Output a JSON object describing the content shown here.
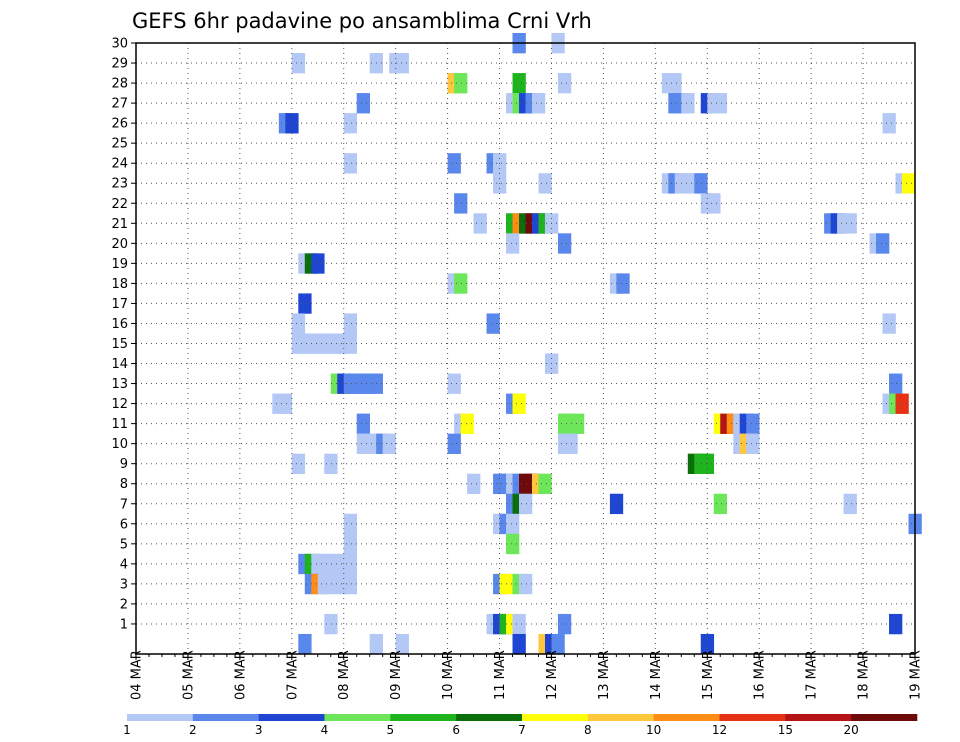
{
  "chart_data": {
    "type": "heatmap",
    "title": "GEFS 6hr padavine po ansamblima Crni Vrh",
    "x_tick_labels": [
      "04 MAR",
      "05 MAR",
      "06 MAR",
      "07 MAR",
      "08 MAR",
      "09 MAR",
      "10 MAR",
      "11 MAR",
      "12 MAR",
      "13 MAR",
      "14 MAR",
      "15 MAR",
      "16 MAR",
      "17 MAR",
      "18 MAR",
      "19 MAR"
    ],
    "y_tick_labels": [
      "1",
      "2",
      "3",
      "4",
      "5",
      "6",
      "7",
      "8",
      "9",
      "10",
      "11",
      "12",
      "13",
      "14",
      "15",
      "16",
      "17",
      "18",
      "19",
      "20",
      "21",
      "22",
      "23",
      "24",
      "25",
      "26",
      "27",
      "28",
      "29",
      "30"
    ],
    "y_range": [
      0,
      30
    ],
    "time_steps_per_day": 4,
    "x_start_label": "04 MAR",
    "grid": true,
    "colorbar": {
      "colors": [
        "#b4c8f5",
        "#5a87eb",
        "#1e46d2",
        "#6ee65a",
        "#1eb41e",
        "#0a6e0a",
        "#ffff0a",
        "#ffc83c",
        "#ff8c14",
        "#e63214",
        "#b41414",
        "#6e0a0a"
      ],
      "labels": [
        "1",
        "2",
        "3",
        "4",
        "5",
        "6",
        "7",
        "8",
        "10",
        "12",
        "15",
        "20"
      ]
    },
    "cells": [
      [
        29.5,
        30,
        "#5a87eb"
      ],
      [
        32.5,
        30,
        "#b4c8f5"
      ],
      [
        12.5,
        29,
        "#b4c8f5"
      ],
      [
        18.5,
        29,
        "#b4c8f5"
      ],
      [
        20,
        29,
        "#b4c8f5"
      ],
      [
        20.5,
        29,
        "#b4c8f5"
      ],
      [
        24.5,
        28,
        "#ffc83c"
      ],
      [
        25,
        28,
        "#6ee65a"
      ],
      [
        29.5,
        28,
        "#1eb41e"
      ],
      [
        33,
        28,
        "#b4c8f5"
      ],
      [
        41,
        28,
        "#b4c8f5"
      ],
      [
        41.5,
        28,
        "#b4c8f5"
      ],
      [
        17.5,
        27,
        "#5a87eb"
      ],
      [
        29,
        27,
        "#b4c8f5"
      ],
      [
        29.5,
        27,
        "#6ee65a"
      ],
      [
        30,
        27,
        "#1e46d2"
      ],
      [
        30.5,
        27,
        "#5a87eb"
      ],
      [
        31,
        27,
        "#b4c8f5"
      ],
      [
        41.5,
        27,
        "#5a87eb"
      ],
      [
        42,
        27,
        "#5a87eb"
      ],
      [
        42.5,
        27,
        "#b4c8f5"
      ],
      [
        44,
        27,
        "#1e46d2"
      ],
      [
        44.5,
        27,
        "#b4c8f5"
      ],
      [
        45,
        27,
        "#b4c8f5"
      ],
      [
        11.5,
        26,
        "#5a87eb"
      ],
      [
        12,
        26,
        "#1e46d2"
      ],
      [
        16.5,
        26,
        "#b4c8f5"
      ],
      [
        58,
        26,
        "#b4c8f5"
      ],
      [
        16.5,
        24,
        "#b4c8f5"
      ],
      [
        24.5,
        24,
        "#5a87eb"
      ],
      [
        27.5,
        24,
        "#5a87eb"
      ],
      [
        28,
        24,
        "#b4c8f5"
      ],
      [
        28,
        23,
        "#b4c8f5"
      ],
      [
        31.5,
        23,
        "#b4c8f5"
      ],
      [
        41,
        23,
        "#b4c8f5"
      ],
      [
        41.5,
        23,
        "#5a87eb"
      ],
      [
        42,
        23,
        "#b4c8f5"
      ],
      [
        42.5,
        23,
        "#b4c8f5"
      ],
      [
        43,
        23,
        "#b4c8f5"
      ],
      [
        43.5,
        23,
        "#5a87eb"
      ],
      [
        59,
        23,
        "#b4c8f5"
      ],
      [
        59.5,
        23,
        "#ffff0a"
      ],
      [
        25,
        22,
        "#5a87eb"
      ],
      [
        44,
        22,
        "#b4c8f5"
      ],
      [
        44.5,
        22,
        "#b4c8f5"
      ],
      [
        26.5,
        21,
        "#b4c8f5"
      ],
      [
        29,
        21,
        "#1eb41e"
      ],
      [
        29.5,
        21,
        "#ff8c14"
      ],
      [
        30,
        21,
        "#0a6e0a"
      ],
      [
        30.5,
        21,
        "#6e0a0a"
      ],
      [
        31,
        21,
        "#1e46d2"
      ],
      [
        31.5,
        21,
        "#1eb41e"
      ],
      [
        32,
        21,
        "#b4c8f5"
      ],
      [
        53.5,
        21,
        "#5a87eb"
      ],
      [
        54,
        21,
        "#1e46d2"
      ],
      [
        54.5,
        21,
        "#b4c8f5"
      ],
      [
        55,
        21,
        "#b4c8f5"
      ],
      [
        29,
        20,
        "#b4c8f5"
      ],
      [
        33,
        20,
        "#5a87eb"
      ],
      [
        57,
        20,
        "#b4c8f5"
      ],
      [
        57.5,
        20,
        "#5a87eb"
      ],
      [
        13,
        19,
        "#b4c8f5"
      ],
      [
        13.5,
        19,
        "#0a6e0a"
      ],
      [
        14,
        19,
        "#1e46d2"
      ],
      [
        24.5,
        18,
        "#b4c8f5"
      ],
      [
        25,
        18,
        "#6ee65a"
      ],
      [
        37,
        18,
        "#b4c8f5"
      ],
      [
        37.5,
        18,
        "#5a87eb"
      ],
      [
        13,
        17,
        "#1e46d2"
      ],
      [
        12.5,
        16,
        "#b4c8f5"
      ],
      [
        16.5,
        16,
        "#b4c8f5"
      ],
      [
        27.5,
        16,
        "#5a87eb"
      ],
      [
        58,
        16,
        "#b4c8f5"
      ],
      [
        12.5,
        15,
        "#b4c8f5"
      ],
      [
        13,
        15,
        "#b4c8f5"
      ],
      [
        13.5,
        15,
        "#b4c8f5"
      ],
      [
        14,
        15,
        "#b4c8f5"
      ],
      [
        14.5,
        15,
        "#b4c8f5"
      ],
      [
        15,
        15,
        "#b4c8f5"
      ],
      [
        15.5,
        15,
        "#b4c8f5"
      ],
      [
        16,
        15,
        "#b4c8f5"
      ],
      [
        16.5,
        15,
        "#b4c8f5"
      ],
      [
        32,
        14,
        "#b4c8f5"
      ],
      [
        15.5,
        13,
        "#6ee65a"
      ],
      [
        16,
        13,
        "#1e46d2"
      ],
      [
        16.5,
        13,
        "#5a87eb"
      ],
      [
        17,
        13,
        "#5a87eb"
      ],
      [
        17.5,
        13,
        "#5a87eb"
      ],
      [
        18,
        13,
        "#5a87eb"
      ],
      [
        18.5,
        13,
        "#5a87eb"
      ],
      [
        24.5,
        13,
        "#b4c8f5"
      ],
      [
        58.5,
        13,
        "#5a87eb"
      ],
      [
        11,
        12,
        "#b4c8f5"
      ],
      [
        11.5,
        12,
        "#b4c8f5"
      ],
      [
        29,
        12,
        "#5a87eb"
      ],
      [
        29.5,
        12,
        "#ffff0a"
      ],
      [
        58,
        12,
        "#b4c8f5"
      ],
      [
        58.5,
        12,
        "#6ee65a"
      ],
      [
        59,
        12,
        "#e63214"
      ],
      [
        17.5,
        11,
        "#5a87eb"
      ],
      [
        25,
        11,
        "#b4c8f5"
      ],
      [
        25.5,
        11,
        "#ffff0a"
      ],
      [
        33,
        11,
        "#6ee65a"
      ],
      [
        33.5,
        11,
        "#6ee65a"
      ],
      [
        34,
        11,
        "#6ee65a"
      ],
      [
        45,
        11,
        "#ffff0a"
      ],
      [
        45.5,
        11,
        "#b41414"
      ],
      [
        46,
        11,
        "#ff8c14"
      ],
      [
        46.5,
        11,
        "#b4c8f5"
      ],
      [
        47,
        11,
        "#1e46d2"
      ],
      [
        47.5,
        11,
        "#5a87eb"
      ],
      [
        17.5,
        10,
        "#b4c8f5"
      ],
      [
        18,
        10,
        "#b4c8f5"
      ],
      [
        18.5,
        10,
        "#b4c8f5"
      ],
      [
        19,
        10,
        "#5a87eb"
      ],
      [
        19.5,
        10,
        "#b4c8f5"
      ],
      [
        24.5,
        10,
        "#5a87eb"
      ],
      [
        33,
        10,
        "#b4c8f5"
      ],
      [
        33.5,
        10,
        "#b4c8f5"
      ],
      [
        46.5,
        10,
        "#b4c8f5"
      ],
      [
        47,
        10,
        "#ffc83c"
      ],
      [
        47.5,
        10,
        "#b4c8f5"
      ],
      [
        12.5,
        9,
        "#b4c8f5"
      ],
      [
        15,
        9,
        "#b4c8f5"
      ],
      [
        43,
        9,
        "#0a6e0a"
      ],
      [
        43.5,
        9,
        "#1eb41e"
      ],
      [
        44,
        9,
        "#1eb41e"
      ],
      [
        26,
        8,
        "#b4c8f5"
      ],
      [
        28,
        8,
        "#5a87eb"
      ],
      [
        28.5,
        8,
        "#5a87eb"
      ],
      [
        29,
        8,
        "#b4c8f5"
      ],
      [
        29.5,
        8,
        "#5a87eb"
      ],
      [
        30,
        8,
        "#6e0a0a"
      ],
      [
        30.5,
        8,
        "#6e0a0a"
      ],
      [
        31,
        8,
        "#ffc83c"
      ],
      [
        31.5,
        8,
        "#6ee65a"
      ],
      [
        29,
        7,
        "#5a87eb"
      ],
      [
        29.5,
        7,
        "#0a6e0a"
      ],
      [
        30,
        7,
        "#b4c8f5"
      ],
      [
        37,
        7,
        "#1e46d2"
      ],
      [
        45,
        7,
        "#6ee65a"
      ],
      [
        55,
        7,
        "#b4c8f5"
      ],
      [
        16.5,
        6,
        "#b4c8f5"
      ],
      [
        28,
        6,
        "#b4c8f5"
      ],
      [
        28.5,
        6,
        "#5a87eb"
      ],
      [
        29,
        6,
        "#b4c8f5"
      ],
      [
        60,
        6,
        "#5a87eb"
      ],
      [
        16.5,
        5,
        "#b4c8f5"
      ],
      [
        29,
        5,
        "#6ee65a"
      ],
      [
        13,
        4,
        "#5a87eb"
      ],
      [
        13.5,
        4,
        "#1eb41e"
      ],
      [
        14,
        4,
        "#b4c8f5"
      ],
      [
        14.5,
        4,
        "#b4c8f5"
      ],
      [
        15,
        4,
        "#b4c8f5"
      ],
      [
        15.5,
        4,
        "#b4c8f5"
      ],
      [
        16,
        4,
        "#b4c8f5"
      ],
      [
        16.5,
        4,
        "#b4c8f5"
      ],
      [
        13.5,
        3,
        "#5a87eb"
      ],
      [
        14,
        3,
        "#ff8c14"
      ],
      [
        14.5,
        3,
        "#b4c8f5"
      ],
      [
        15,
        3,
        "#b4c8f5"
      ],
      [
        15.5,
        3,
        "#b4c8f5"
      ],
      [
        16,
        3,
        "#b4c8f5"
      ],
      [
        16.5,
        3,
        "#b4c8f5"
      ],
      [
        28,
        3,
        "#5a87eb"
      ],
      [
        28.5,
        3,
        "#ffff0a"
      ],
      [
        29.5,
        3,
        "#6ee65a"
      ],
      [
        30,
        3,
        "#b4c8f5"
      ],
      [
        15,
        1,
        "#b4c8f5"
      ],
      [
        27.5,
        1,
        "#b4c8f5"
      ],
      [
        28,
        1,
        "#1e46d2"
      ],
      [
        28.5,
        1,
        "#1eb41e"
      ],
      [
        29,
        1,
        "#ffff0a"
      ],
      [
        29.5,
        1,
        "#b4c8f5"
      ],
      [
        33,
        1,
        "#5a87eb"
      ],
      [
        58.5,
        1,
        "#1e46d2"
      ],
      [
        13,
        0,
        "#5a87eb"
      ],
      [
        18.5,
        0,
        "#b4c8f5"
      ],
      [
        20.5,
        0,
        "#b4c8f5"
      ],
      [
        29.5,
        0,
        "#1e46d2"
      ],
      [
        31.5,
        0,
        "#ffc83c"
      ],
      [
        32,
        0,
        "#1e46d2"
      ],
      [
        32.5,
        0,
        "#5a87eb"
      ],
      [
        44,
        0,
        "#1e46d2"
      ]
    ]
  }
}
